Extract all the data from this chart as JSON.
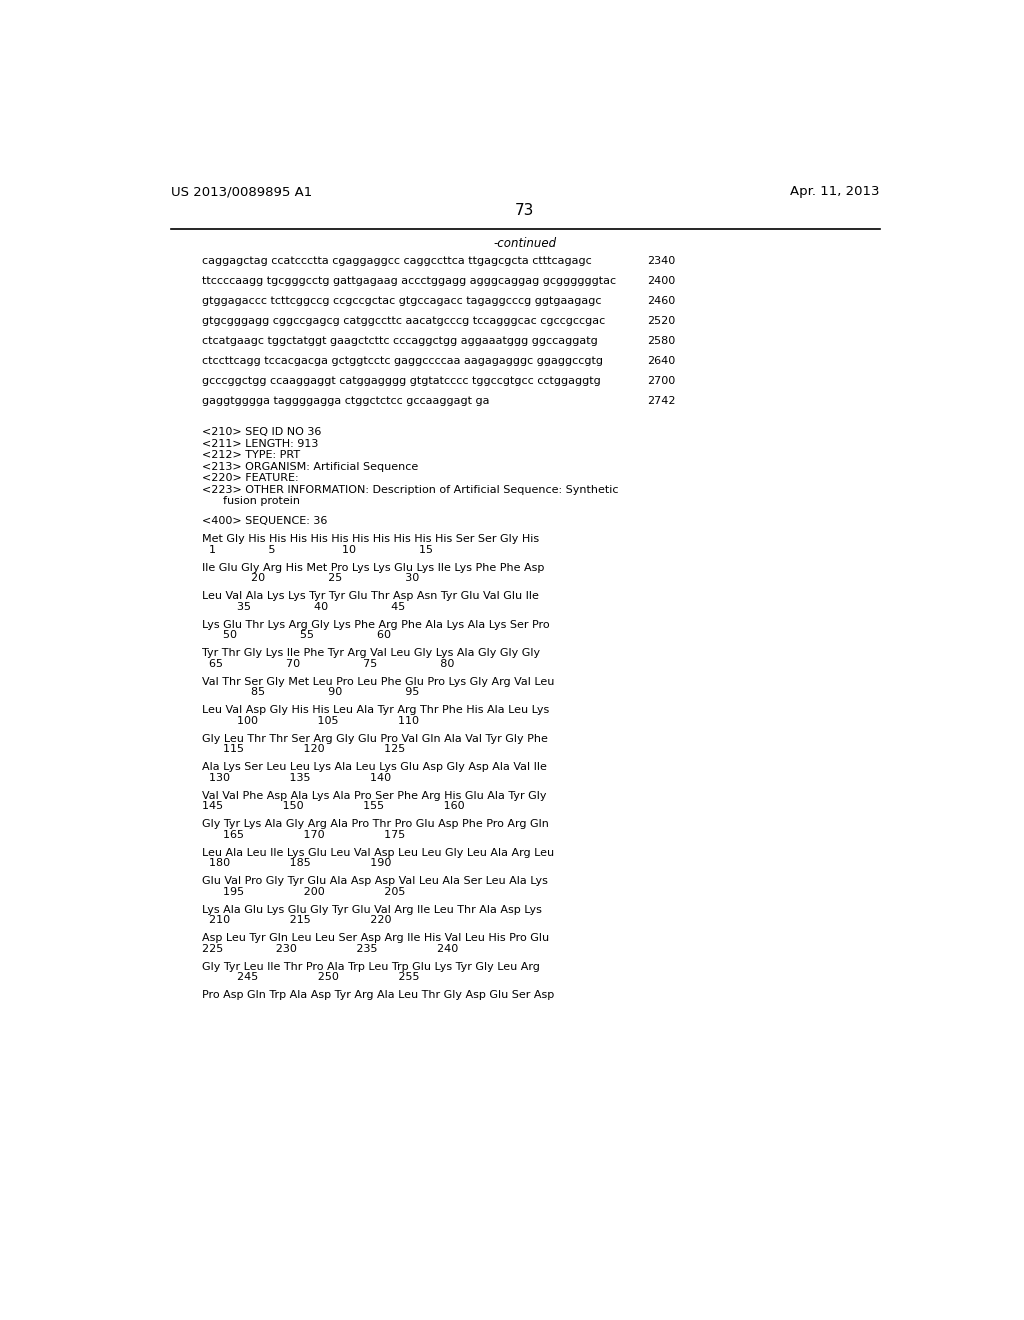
{
  "header_left": "US 2013/0089895 A1",
  "header_right": "Apr. 11, 2013",
  "page_number": "73",
  "continued_label": "-continued",
  "background_color": "#ffffff",
  "text_color": "#000000",
  "sequence_lines": [
    [
      "caggagctag ccatccctta cgaggaggcc caggccttca ttgagcgcta ctttcagagc",
      "2340"
    ],
    [
      "ttccccaagg tgcgggcctg gattgagaag accctggagg agggcaggag gcggggggtac",
      "2400"
    ],
    [
      "gtggagaccc tcttcggccg ccgccgctac gtgccagacc tagaggcccg ggtgaagagc",
      "2460"
    ],
    [
      "gtgcgggagg cggccgagcg catggccttc aacatgcccg tccagggcac cgccgccgac",
      "2520"
    ],
    [
      "ctcatgaagc tggctatggt gaagctcttc cccaggctgg aggaaatggg ggccaggatg",
      "2580"
    ],
    [
      "ctccttcagg tccacgacga gctggtcctc gaggccccaa aagagagggc ggaggccgtg",
      "2640"
    ],
    [
      "gcccggctgg ccaaggaggt catggagggg gtgtatcccc tggccgtgcc cctggaggtg",
      "2700"
    ],
    [
      "gaggtgggga taggggagga ctggctctcc gccaaggagt ga",
      "2742"
    ]
  ],
  "meta_lines": [
    "<210> SEQ ID NO 36",
    "<211> LENGTH: 913",
    "<212> TYPE: PRT",
    "<213> ORGANISM: Artificial Sequence",
    "<220> FEATURE:",
    "<223> OTHER INFORMATION: Description of Artificial Sequence: Synthetic",
    "      fusion protein"
  ],
  "sequence_header": "<400> SEQUENCE: 36",
  "protein_blocks": [
    {
      "seq": "Met Gly His His His His His His His His His His Ser Ser Gly His",
      "num": "  1               5                   10                  15"
    },
    {
      "seq": "Ile Glu Gly Arg His Met Pro Lys Lys Glu Lys Ile Lys Phe Phe Asp",
      "num": "              20                  25                  30"
    },
    {
      "seq": "Leu Val Ala Lys Lys Tyr Tyr Glu Thr Asp Asn Tyr Glu Val Glu Ile",
      "num": "          35                  40                  45"
    },
    {
      "seq": "Lys Glu Thr Lys Arg Gly Lys Phe Arg Phe Ala Lys Ala Lys Ser Pro",
      "num": "      50                  55                  60"
    },
    {
      "seq": "Tyr Thr Gly Lys Ile Phe Tyr Arg Val Leu Gly Lys Ala Gly Gly Gly",
      "num": "  65                  70                  75                  80"
    },
    {
      "seq": "Val Thr Ser Gly Met Leu Pro Leu Phe Glu Pro Lys Gly Arg Val Leu",
      "num": "              85                  90                  95"
    },
    {
      "seq": "Leu Val Asp Gly His His Leu Ala Tyr Arg Thr Phe His Ala Leu Lys",
      "num": "          100                 105                 110"
    },
    {
      "seq": "Gly Leu Thr Thr Ser Arg Gly Glu Pro Val Gln Ala Val Tyr Gly Phe",
      "num": "      115                 120                 125"
    },
    {
      "seq": "Ala Lys Ser Leu Leu Lys Ala Leu Lys Glu Asp Gly Asp Ala Val Ile",
      "num": "  130                 135                 140"
    },
    {
      "seq": "Val Val Phe Asp Ala Lys Ala Pro Ser Phe Arg His Glu Ala Tyr Gly",
      "num": "145                 150                 155                 160"
    },
    {
      "seq": "Gly Tyr Lys Ala Gly Arg Ala Pro Thr Pro Glu Asp Phe Pro Arg Gln",
      "num": "      165                 170                 175"
    },
    {
      "seq": "Leu Ala Leu Ile Lys Glu Leu Val Asp Leu Leu Gly Leu Ala Arg Leu",
      "num": "  180                 185                 190"
    },
    {
      "seq": "Glu Val Pro Gly Tyr Glu Ala Asp Asp Val Leu Ala Ser Leu Ala Lys",
      "num": "      195                 200                 205"
    },
    {
      "seq": "Lys Ala Glu Lys Glu Gly Tyr Glu Val Arg Ile Leu Thr Ala Asp Lys",
      "num": "  210                 215                 220"
    },
    {
      "seq": "Asp Leu Tyr Gln Leu Leu Ser Asp Arg Ile His Val Leu His Pro Glu",
      "num": "225               230                 235                 240"
    },
    {
      "seq": "Gly Tyr Leu Ile Thr Pro Ala Trp Leu Trp Glu Lys Tyr Gly Leu Arg",
      "num": "          245                 250                 255"
    },
    {
      "seq": "Pro Asp Gln Trp Ala Asp Tyr Arg Ala Leu Thr Gly Asp Glu Ser Asp",
      "num": ""
    }
  ]
}
